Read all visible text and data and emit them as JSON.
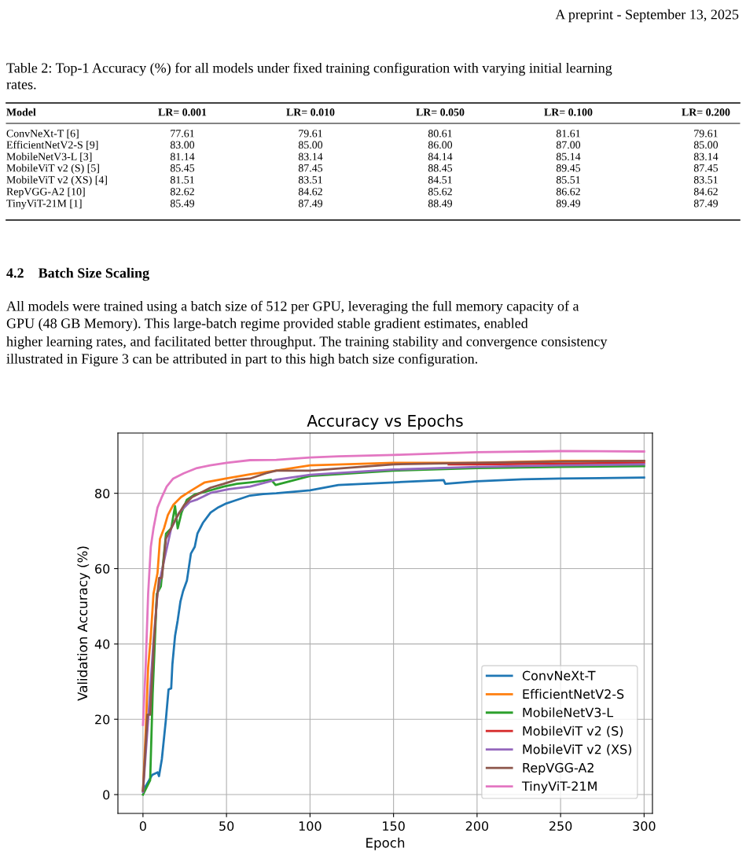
{
  "chart_data": {
    "type": "line",
    "title": "Accuracy vs Epochs",
    "xlabel": "Epoch",
    "ylabel": "Validation Accuracy (%)",
    "xlim": [
      -15,
      305
    ],
    "ylim": [
      -5,
      96
    ],
    "xticks": [
      0,
      50,
      100,
      150,
      200,
      250,
      300
    ],
    "yticks": [
      0,
      20,
      40,
      60,
      80
    ],
    "grid": true,
    "legend": "bottom right",
    "marker": "none",
    "line_style": "solid",
    "series": [
      {
        "name": "ConvNeXt-T",
        "color": "#1f77b4",
        "x": [
          0,
          5.5,
          8.8,
          9.6,
          11.3,
          13.7,
          15.3,
          16.9,
          17.6,
          19.2,
          20.8,
          22.4,
          24,
          26.3,
          27.9,
          28.7,
          31,
          32.6,
          35.8,
          40.5,
          45.2,
          49.9,
          54.6,
          64.1,
          72,
          79.8,
          100,
          117,
          150,
          180,
          181,
          200,
          227,
          250,
          300
        ],
        "values": [
          1,
          5.2,
          5.9,
          4.9,
          9.4,
          19.8,
          27.9,
          28.2,
          34.5,
          42.1,
          46.3,
          51.2,
          54,
          56.8,
          61.6,
          64,
          65.8,
          69.3,
          72.1,
          74.9,
          76.3,
          77.3,
          78,
          79.4,
          79.8,
          80,
          80.8,
          82.2,
          82.9,
          83.5,
          82.5,
          83.2,
          83.7,
          83.9,
          84.2
        ]
      },
      {
        "name": "EfficientNetV2-S",
        "color": "#ff7f0e",
        "x": [
          0,
          1.6,
          3.1,
          4.7,
          6.3,
          8.7,
          10.2,
          12.6,
          14.9,
          18.1,
          22.8,
          29.1,
          37,
          49.6,
          63.8,
          79.5,
          100,
          150,
          200,
          250,
          300
        ],
        "values": [
          1,
          16.4,
          33.8,
          42.1,
          53.3,
          58.8,
          67.9,
          70.7,
          74.2,
          76.9,
          79,
          80.8,
          82.9,
          83.9,
          85,
          86,
          87.4,
          88.1,
          88.1,
          88.6,
          88.6
        ]
      },
      {
        "name": "MobileNetV3-L",
        "color": "#2ca02c",
        "x": [
          0,
          2.7,
          4.3,
          5.8,
          8.3,
          10.7,
          13.8,
          16.9,
          19.2,
          20.8,
          23.1,
          26.3,
          31,
          37.3,
          48.3,
          56.2,
          64.1,
          70,
          76.7,
          79.4,
          100,
          150,
          200,
          250,
          300
        ],
        "values": [
          0,
          2.4,
          3.8,
          26.8,
          53.3,
          55.3,
          69.3,
          70.7,
          76.6,
          70.7,
          74.9,
          78.3,
          79.7,
          80.4,
          81.8,
          82.5,
          82.9,
          83.2,
          83.6,
          82.2,
          84.6,
          86,
          86.7,
          87,
          87.2
        ]
      },
      {
        "name": "MobileViT v2 (S)",
        "color": "#d62728",
        "x": [
          183,
          200,
          250,
          300
        ],
        "values": [
          87.7,
          87.7,
          87.9,
          88.1
        ]
      },
      {
        "name": "MobileViT v2 (XS)",
        "color": "#9467bd",
        "x": [
          0,
          3.1,
          6.3,
          8.7,
          11,
          16.9,
          21.7,
          28,
          32.7,
          40.5,
          51.5,
          64.1,
          79.8,
          100,
          150,
          200,
          250,
          300
        ],
        "values": [
          0.7,
          19.8,
          40.7,
          53.3,
          58.8,
          70.7,
          74.9,
          77.7,
          78.4,
          80.1,
          81.1,
          81.8,
          83.6,
          84.9,
          86.3,
          87,
          87.4,
          87.7
        ]
      },
      {
        "name": "RepVGG-A2",
        "color": "#8c564b",
        "x": [
          0,
          2.7,
          4.3,
          6.6,
          8.3,
          9.7,
          11.3,
          13.7,
          16.9,
          20,
          24.7,
          29.4,
          35.7,
          40.5,
          48.3,
          56.2,
          64,
          73.5,
          79.8,
          100,
          150,
          200,
          250,
          300
        ],
        "values": [
          1,
          21.2,
          21.2,
          40.7,
          51.9,
          57.5,
          57.5,
          67.9,
          70.7,
          73.5,
          76.9,
          79,
          80.4,
          81.5,
          82.5,
          83.6,
          83.9,
          85.3,
          86,
          86,
          87.7,
          88.1,
          88.4,
          88.6
        ]
      },
      {
        "name": "TinyViT-21M",
        "color": "#e377c2",
        "x": [
          0,
          1.6,
          3.1,
          4.7,
          6.3,
          8.7,
          11,
          14.2,
          18.1,
          24.4,
          32.3,
          40.2,
          50.2,
          64.1,
          79.8,
          100,
          117,
          150,
          200,
          250,
          300
        ],
        "values": [
          18.5,
          33.8,
          53.3,
          65.8,
          70.7,
          76.2,
          78.7,
          81.8,
          83.9,
          85.3,
          86.7,
          87.4,
          88.1,
          88.8,
          88.9,
          89.5,
          89.8,
          90.2,
          90.9,
          91.2,
          91.1
        ]
      }
    ],
    "annotations": [
      "A preprint - September 13, 2025",
      "Table 2: Top-1 Accuracy (%) for all models under fixed training configuration with varying initial learning",
      "rates.",
      "Model",
      "LR= 0.001",
      "LR= 0.010",
      "LR= 0.050",
      "LR= 0.100",
      "LR= 0.200",
      "ConvNeXt-T [6]",
      "77.61",
      "79.61",
      "80.61",
      "81.61",
      "79.61",
      "EfficientNetV2-S [9]",
      "83.00",
      "85.00",
      "86.00",
      "87.00",
      "85.00",
      "MobileNetV3-L [3]",
      "81.14",
      "83.14",
      "84.14",
      "85.14",
      "83.14",
      "MobileViT v2 (S) [5]",
      "85.45",
      "87.45",
      "88.45",
      "89.45",
      "87.45",
      "MobileViT v2 (XS) [4]",
      "81.51",
      "83.51",
      "84.51",
      "85.51",
      "83.51",
      "RepVGG-A2 [10]",
      "82.62",
      "84.62",
      "85.62",
      "86.62",
      "84.62",
      "TinyViT-21M [1]",
      "85.49",
      "87.49",
      "88.49",
      "89.49",
      "87.49",
      "4.2    Batch Size Scaling",
      "All models were trained using a batch size of 512 per GPU, leveraging the full memory capacity of a",
      "GPU (48 GB Memory). This large-batch regime provided stable gradient estimates, enabled",
      "higher learning rates, and facilitated better throughput. The training stability and convergence consistency",
      "illustrated in Figure 3 can be attributed in part to this high batch size configuration."
    ]
  }
}
